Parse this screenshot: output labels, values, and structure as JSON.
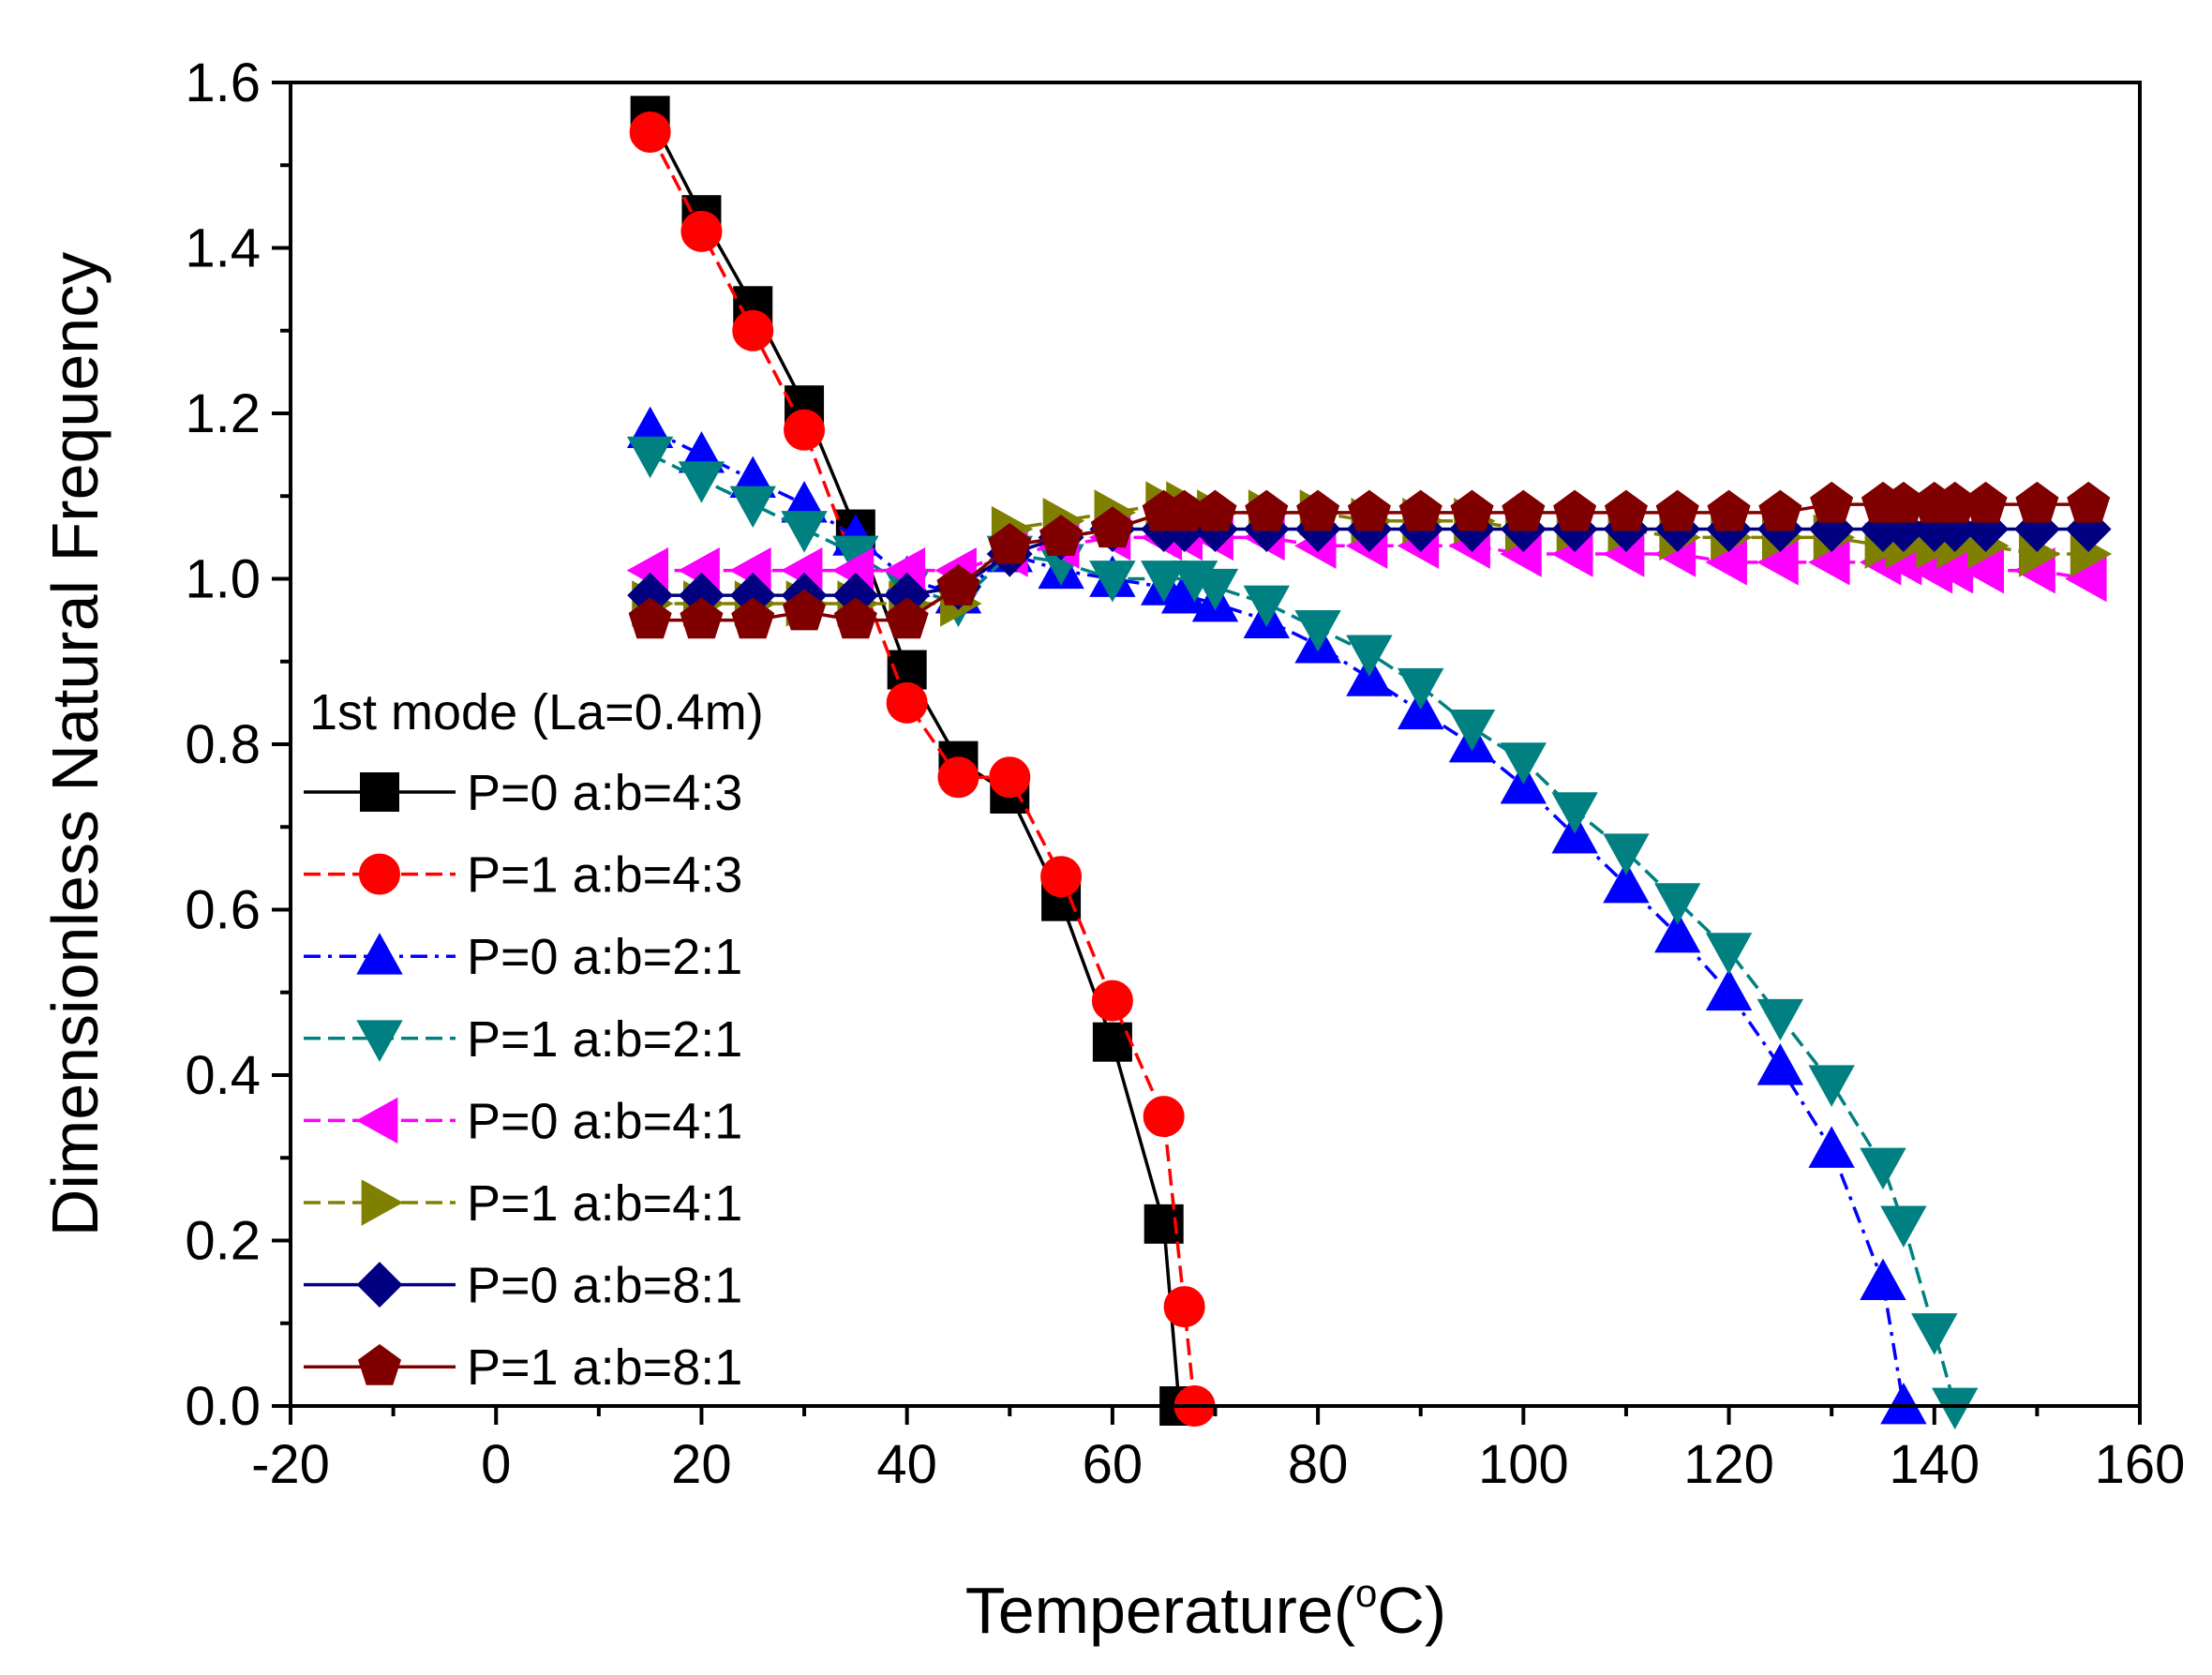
{
  "chart_data": {
    "type": "line",
    "title": "",
    "xlabel": "Temperature(",
    "xlabel_degree": "o",
    "xlabel_unit": "C)",
    "ylabel": "Dimensionless Natural Frequency",
    "xlim": [
      -20,
      160
    ],
    "ylim": [
      0.0,
      1.6
    ],
    "x_ticks": [
      -20,
      0,
      20,
      40,
      60,
      80,
      100,
      120,
      140,
      160
    ],
    "x_tick_labels": [
      "-20",
      "0",
      "20",
      "40",
      "60",
      "80",
      "100",
      "120",
      "140",
      "160"
    ],
    "y_ticks": [
      0.0,
      0.2,
      0.4,
      0.6,
      0.8,
      1.0,
      1.2,
      1.4,
      1.6
    ],
    "y_tick_labels": [
      "0.0",
      "0.2",
      "0.4",
      "0.6",
      "0.8",
      "1.0",
      "1.2",
      "1.4",
      "1.6"
    ],
    "grid": false,
    "legend_title": "1st mode (La=0.4m)",
    "legend_position": "left",
    "series": [
      {
        "name": "P=0 a:b=4:3",
        "color": "#000000",
        "marker": "square",
        "dash": "solid",
        "x": [
          15,
          20,
          25,
          30,
          35,
          40,
          45,
          50,
          55,
          60,
          65,
          66.5
        ],
        "y": [
          1.56,
          1.44,
          1.33,
          1.21,
          1.06,
          0.89,
          0.78,
          0.74,
          0.61,
          0.44,
          0.22,
          0.0
        ]
      },
      {
        "name": "P=1 a:b=4:3",
        "color": "#ff0000",
        "marker": "circle",
        "dash": "dash",
        "x": [
          15,
          20,
          25,
          30,
          40,
          45,
          50,
          55,
          60,
          65,
          67,
          68
        ],
        "y": [
          1.54,
          1.42,
          1.3,
          1.18,
          0.85,
          0.76,
          0.76,
          0.64,
          0.49,
          0.35,
          0.12,
          0.0
        ]
      },
      {
        "name": "P=0 a:b=2:1",
        "color": "#0000ff",
        "marker": "triangle-up",
        "dash": "dashdot",
        "x": [
          15,
          20,
          25,
          30,
          35,
          40,
          45,
          50,
          55,
          60,
          65,
          67,
          70,
          75,
          80,
          85,
          90,
          95,
          100,
          105,
          110,
          115,
          120,
          125,
          130,
          135,
          137
        ],
        "y": [
          1.18,
          1.15,
          1.12,
          1.09,
          1.05,
          1.0,
          0.98,
          1.03,
          1.01,
          1.0,
          0.99,
          0.98,
          0.97,
          0.95,
          0.92,
          0.88,
          0.84,
          0.8,
          0.75,
          0.69,
          0.63,
          0.57,
          0.5,
          0.41,
          0.31,
          0.15,
          0.0
        ]
      },
      {
        "name": "P=1 a:b=2:1",
        "color": "#008080",
        "marker": "triangle-down",
        "dash": "dash",
        "x": [
          15,
          20,
          25,
          30,
          35,
          40,
          45,
          50,
          55,
          60,
          65,
          68,
          70,
          75,
          80,
          85,
          90,
          95,
          100,
          105,
          110,
          115,
          120,
          125,
          130,
          135,
          137,
          140,
          142
        ],
        "y": [
          1.15,
          1.12,
          1.09,
          1.06,
          1.03,
          0.99,
          0.97,
          1.03,
          1.02,
          1.0,
          1.0,
          1.0,
          0.99,
          0.97,
          0.94,
          0.91,
          0.87,
          0.82,
          0.78,
          0.72,
          0.67,
          0.61,
          0.55,
          0.47,
          0.39,
          0.29,
          0.22,
          0.09,
          0.0
        ]
      },
      {
        "name": "P=0 a:b=4:1",
        "color": "#ff00ff",
        "marker": "triangle-left",
        "dash": "dash",
        "x": [
          15,
          20,
          25,
          30,
          35,
          40,
          45,
          50,
          55,
          60,
          65,
          67,
          70,
          75,
          80,
          85,
          90,
          95,
          100,
          105,
          110,
          115,
          120,
          125,
          130,
          135,
          137,
          140,
          142,
          145,
          150,
          155
        ],
        "y": [
          1.01,
          1.01,
          1.01,
          1.01,
          1.01,
          1.01,
          1.01,
          1.03,
          1.04,
          1.05,
          1.05,
          1.05,
          1.05,
          1.05,
          1.04,
          1.04,
          1.04,
          1.04,
          1.03,
          1.03,
          1.03,
          1.03,
          1.02,
          1.02,
          1.02,
          1.02,
          1.02,
          1.01,
          1.01,
          1.01,
          1.01,
          1.0
        ]
      },
      {
        "name": "P=1 a:b=4:1",
        "color": "#808000",
        "marker": "triangle-right",
        "dash": "dash",
        "x": [
          15,
          20,
          25,
          30,
          35,
          40,
          45,
          50,
          55,
          60,
          65,
          67,
          70,
          75,
          80,
          85,
          90,
          95,
          100,
          105,
          110,
          115,
          120,
          125,
          130,
          135,
          137,
          140,
          142,
          145,
          150,
          155
        ],
        "y": [
          0.97,
          0.97,
          0.97,
          0.97,
          0.97,
          0.97,
          0.97,
          1.06,
          1.07,
          1.08,
          1.09,
          1.09,
          1.08,
          1.08,
          1.08,
          1.07,
          1.07,
          1.07,
          1.06,
          1.06,
          1.06,
          1.05,
          1.05,
          1.05,
          1.05,
          1.04,
          1.04,
          1.04,
          1.04,
          1.04,
          1.03,
          1.03
        ]
      },
      {
        "name": "P=0 a:b=8:1",
        "color": "#000080",
        "marker": "diamond",
        "dash": "solid",
        "x": [
          15,
          20,
          25,
          30,
          35,
          40,
          45,
          50,
          55,
          60,
          65,
          67,
          70,
          75,
          80,
          85,
          90,
          95,
          100,
          105,
          110,
          115,
          120,
          125,
          130,
          135,
          137,
          140,
          142,
          145,
          150,
          155
        ],
        "y": [
          0.98,
          0.98,
          0.98,
          0.98,
          0.98,
          0.98,
          0.99,
          1.03,
          1.05,
          1.06,
          1.06,
          1.06,
          1.06,
          1.06,
          1.06,
          1.06,
          1.06,
          1.06,
          1.06,
          1.06,
          1.06,
          1.06,
          1.06,
          1.06,
          1.06,
          1.06,
          1.06,
          1.06,
          1.06,
          1.06,
          1.06,
          1.06
        ]
      },
      {
        "name": "P=1 a:b=8:1",
        "color": "#800000",
        "marker": "pentagon",
        "dash": "solid",
        "x": [
          15,
          20,
          25,
          30,
          35,
          40,
          45,
          50,
          55,
          60,
          65,
          67,
          70,
          75,
          80,
          85,
          90,
          95,
          100,
          105,
          110,
          115,
          120,
          125,
          130,
          135,
          137,
          140,
          142,
          145,
          150,
          155
        ],
        "y": [
          0.95,
          0.95,
          0.95,
          0.96,
          0.95,
          0.95,
          0.99,
          1.04,
          1.05,
          1.06,
          1.08,
          1.08,
          1.08,
          1.08,
          1.08,
          1.08,
          1.08,
          1.08,
          1.08,
          1.08,
          1.08,
          1.08,
          1.08,
          1.08,
          1.09,
          1.09,
          1.09,
          1.09,
          1.09,
          1.09,
          1.09,
          1.09
        ]
      }
    ]
  }
}
